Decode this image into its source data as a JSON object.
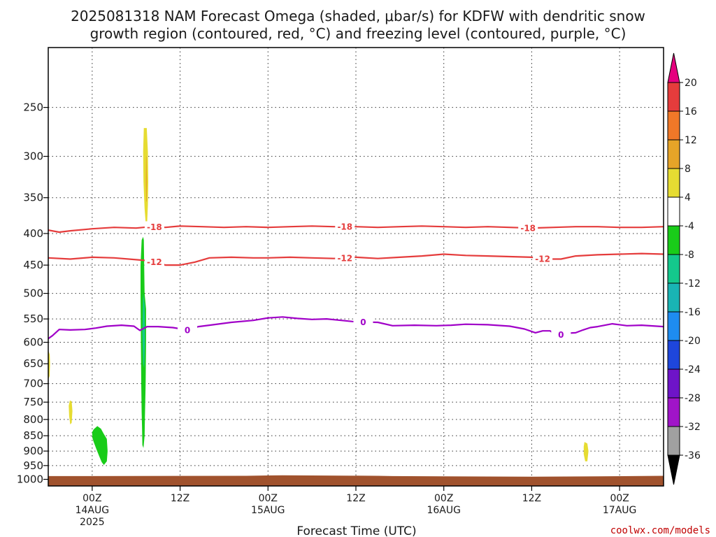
{
  "chart_data": {
    "type": "heatmap",
    "title_line1": "2025081318 NAM Forecast Omega (shaded, μbar/s) for KDFW with dendritic snow",
    "title_line2": "growth region (contoured, red, °C) and freezing level (contoured, purple, °C)",
    "xlabel": "Forecast Time (UTC)",
    "credit": "coolwx.com/models",
    "x_unit": "hours since 2025-08-13 18Z",
    "xlim": [
      0,
      84
    ],
    "y_unit": "hPa",
    "ylim": [
      1025,
      200
    ],
    "y_scale": "log-pressure",
    "grid": "dotted",
    "yticks": [
      250,
      300,
      350,
      400,
      450,
      500,
      550,
      600,
      650,
      700,
      750,
      800,
      850,
      900,
      950,
      1000
    ],
    "xticks": [
      {
        "t": 6,
        "lines": [
          "00Z",
          "14AUG",
          "2025"
        ]
      },
      {
        "t": 18,
        "lines": [
          "12Z"
        ]
      },
      {
        "t": 30,
        "lines": [
          "00Z",
          "15AUG"
        ]
      },
      {
        "t": 42,
        "lines": [
          "12Z"
        ]
      },
      {
        "t": 54,
        "lines": [
          "00Z",
          "16AUG"
        ]
      },
      {
        "t": 66,
        "lines": [
          "12Z"
        ]
      },
      {
        "t": 78,
        "lines": [
          "00Z",
          "17AUG"
        ]
      }
    ],
    "colorbar": {
      "levels": [
        20,
        16,
        12,
        8,
        4,
        -4,
        -8,
        -12,
        -16,
        -20,
        -24,
        -28,
        -32,
        -36
      ],
      "colors": [
        "#e5007e",
        "#e53c3c",
        "#f07828",
        "#e6a428",
        "#e6dc32",
        "#ffffff",
        "#19cc19",
        "#14c88c",
        "#19b4b4",
        "#1e8cf0",
        "#1e46dc",
        "#6e14c8",
        "#a014c8",
        "#a0a0a0",
        "#000000"
      ]
    },
    "surface_color": "#a0522d",
    "contours": [
      {
        "name": "-18",
        "color": "#e53c3c",
        "points": [
          [
            0,
            395
          ],
          [
            1.5,
            398
          ],
          [
            3,
            396
          ],
          [
            6,
            393
          ],
          [
            9,
            391
          ],
          [
            12,
            392
          ],
          [
            14,
            390
          ],
          [
            16,
            391
          ],
          [
            18,
            389
          ],
          [
            21,
            390
          ],
          [
            24,
            391
          ],
          [
            27,
            390
          ],
          [
            30,
            391
          ],
          [
            33,
            390
          ],
          [
            36,
            389
          ],
          [
            39,
            390
          ],
          [
            42,
            390
          ],
          [
            45,
            391
          ],
          [
            48,
            390
          ],
          [
            51,
            389
          ],
          [
            54,
            390
          ],
          [
            57,
            391
          ],
          [
            60,
            390
          ],
          [
            63,
            391
          ],
          [
            66,
            392
          ],
          [
            69,
            391
          ],
          [
            72,
            390
          ],
          [
            75,
            390
          ],
          [
            78,
            391
          ],
          [
            81,
            391
          ],
          [
            84,
            390
          ]
        ],
        "labels": [
          14.5,
          40.5,
          65.5
        ]
      },
      {
        "name": "-12",
        "color": "#e53c3c",
        "points": [
          [
            0,
            438
          ],
          [
            3,
            440
          ],
          [
            6,
            437
          ],
          [
            9,
            438
          ],
          [
            12,
            441
          ],
          [
            14,
            443
          ],
          [
            16,
            450
          ],
          [
            18,
            450
          ],
          [
            20,
            445
          ],
          [
            22,
            438
          ],
          [
            25,
            437
          ],
          [
            28,
            438
          ],
          [
            30,
            438
          ],
          [
            33,
            437
          ],
          [
            36,
            438
          ],
          [
            39,
            439
          ],
          [
            42,
            437
          ],
          [
            45,
            439
          ],
          [
            48,
            437
          ],
          [
            51,
            435
          ],
          [
            54,
            432
          ],
          [
            57,
            434
          ],
          [
            60,
            435
          ],
          [
            63,
            436
          ],
          [
            66,
            437
          ],
          [
            68,
            440
          ],
          [
            70,
            440
          ],
          [
            72,
            435
          ],
          [
            75,
            433
          ],
          [
            78,
            432
          ],
          [
            81,
            431
          ],
          [
            84,
            432
          ]
        ],
        "labels": [
          14.5,
          40.5,
          67.5
        ]
      },
      {
        "name": "0",
        "color": "#a000c8",
        "points": [
          [
            0,
            592
          ],
          [
            0.6,
            585
          ],
          [
            1.5,
            572
          ],
          [
            3,
            573
          ],
          [
            5,
            572
          ],
          [
            6.5,
            569
          ],
          [
            8,
            565
          ],
          [
            10,
            563
          ],
          [
            11.7,
            565
          ],
          [
            12.5,
            574
          ],
          [
            13.5,
            566
          ],
          [
            15,
            566
          ],
          [
            17,
            568
          ],
          [
            19,
            573
          ],
          [
            20.5,
            566
          ],
          [
            22,
            563
          ],
          [
            25,
            557
          ],
          [
            28,
            553
          ],
          [
            30,
            548
          ],
          [
            32,
            546
          ],
          [
            34,
            549
          ],
          [
            36,
            551
          ],
          [
            38,
            550
          ],
          [
            40,
            553
          ],
          [
            42,
            556
          ],
          [
            45,
            557
          ],
          [
            47,
            564
          ],
          [
            50,
            563
          ],
          [
            53,
            564
          ],
          [
            55,
            563
          ],
          [
            57,
            561
          ],
          [
            60,
            562
          ],
          [
            63,
            565
          ],
          [
            65,
            571
          ],
          [
            66.5,
            579
          ],
          [
            67.5,
            575
          ],
          [
            68.5,
            575
          ],
          [
            69.2,
            582
          ],
          [
            70,
            583
          ],
          [
            71,
            580
          ],
          [
            72,
            579
          ],
          [
            73,
            573
          ],
          [
            74,
            568
          ],
          [
            75,
            566
          ],
          [
            77,
            560
          ],
          [
            79,
            564
          ],
          [
            81,
            563
          ],
          [
            84,
            566
          ]
        ],
        "labels": [
          19,
          43,
          70
        ]
      }
    ],
    "omega_blobs": [
      {
        "value": 4,
        "color": "#e6dc32",
        "points": [
          [
            13.05,
            270
          ],
          [
            13.45,
            270
          ],
          [
            13.6,
            295
          ],
          [
            13.65,
            330
          ],
          [
            13.6,
            360
          ],
          [
            13.5,
            385
          ],
          [
            13.35,
            392
          ],
          [
            13.15,
            365
          ],
          [
            13.0,
            330
          ],
          [
            12.95,
            295
          ]
        ]
      },
      {
        "value": 8,
        "color": "#e6a428",
        "points": [
          [
            13.35,
            300
          ],
          [
            13.42,
            300
          ],
          [
            13.48,
            330
          ],
          [
            13.46,
            355
          ],
          [
            13.38,
            355
          ],
          [
            13.33,
            330
          ]
        ]
      },
      {
        "value": -4,
        "color": "#19cc19",
        "points": [
          [
            12.95,
            405
          ],
          [
            13.05,
            410
          ],
          [
            13.1,
            450
          ],
          [
            13.15,
            500
          ],
          [
            13.35,
            530
          ],
          [
            13.35,
            600
          ],
          [
            13.3,
            700
          ],
          [
            13.2,
            790
          ],
          [
            13.15,
            850
          ],
          [
            13.0,
            890
          ],
          [
            12.85,
            880
          ],
          [
            12.8,
            820
          ],
          [
            12.75,
            780
          ],
          [
            12.7,
            700
          ],
          [
            12.65,
            600
          ],
          [
            12.6,
            500
          ],
          [
            12.6,
            450
          ],
          [
            12.75,
            410
          ]
        ]
      },
      {
        "value": -8,
        "color": "#14c88c",
        "points": [
          [
            12.95,
            500
          ],
          [
            13.15,
            520
          ],
          [
            13.2,
            600
          ],
          [
            13.1,
            660
          ],
          [
            12.95,
            650
          ],
          [
            12.85,
            580
          ]
        ]
      },
      {
        "value": -4,
        "color": "#19cc19",
        "points": [
          [
            6.2,
            830
          ],
          [
            6.7,
            820
          ],
          [
            7.2,
            828
          ],
          [
            7.6,
            845
          ],
          [
            8.0,
            860
          ],
          [
            8.1,
            900
          ],
          [
            8.0,
            935
          ],
          [
            7.6,
            948
          ],
          [
            7.3,
            938
          ],
          [
            7.0,
            920
          ],
          [
            6.6,
            895
          ],
          [
            6.2,
            870
          ],
          [
            6.0,
            855
          ],
          [
            6.0,
            838
          ]
        ]
      },
      {
        "value": 4,
        "color": "#e6dc32",
        "points": [
          [
            2.95,
            745
          ],
          [
            3.2,
            748
          ],
          [
            3.3,
            775
          ],
          [
            3.2,
            810
          ],
          [
            3.0,
            815
          ],
          [
            2.85,
            790
          ],
          [
            2.8,
            760
          ]
        ]
      },
      {
        "value": 4,
        "color": "#e6dc32",
        "points": [
          [
            73.2,
            870
          ],
          [
            73.6,
            875
          ],
          [
            73.75,
            900
          ],
          [
            73.6,
            935
          ],
          [
            73.3,
            935
          ],
          [
            73.1,
            910
          ],
          [
            73.1,
            885
          ]
        ]
      },
      {
        "value": 4,
        "color": "#e6dc32",
        "points": [
          [
            0,
            618
          ],
          [
            0.2,
            628
          ],
          [
            0.25,
            650
          ],
          [
            0.18,
            680
          ],
          [
            0,
            690
          ]
        ]
      }
    ],
    "surface": [
      [
        0,
        988
      ],
      [
        27,
        987
      ],
      [
        32,
        985
      ],
      [
        45,
        987
      ],
      [
        47,
        988
      ],
      [
        66,
        990
      ],
      [
        75,
        989
      ],
      [
        84,
        987
      ]
    ]
  }
}
